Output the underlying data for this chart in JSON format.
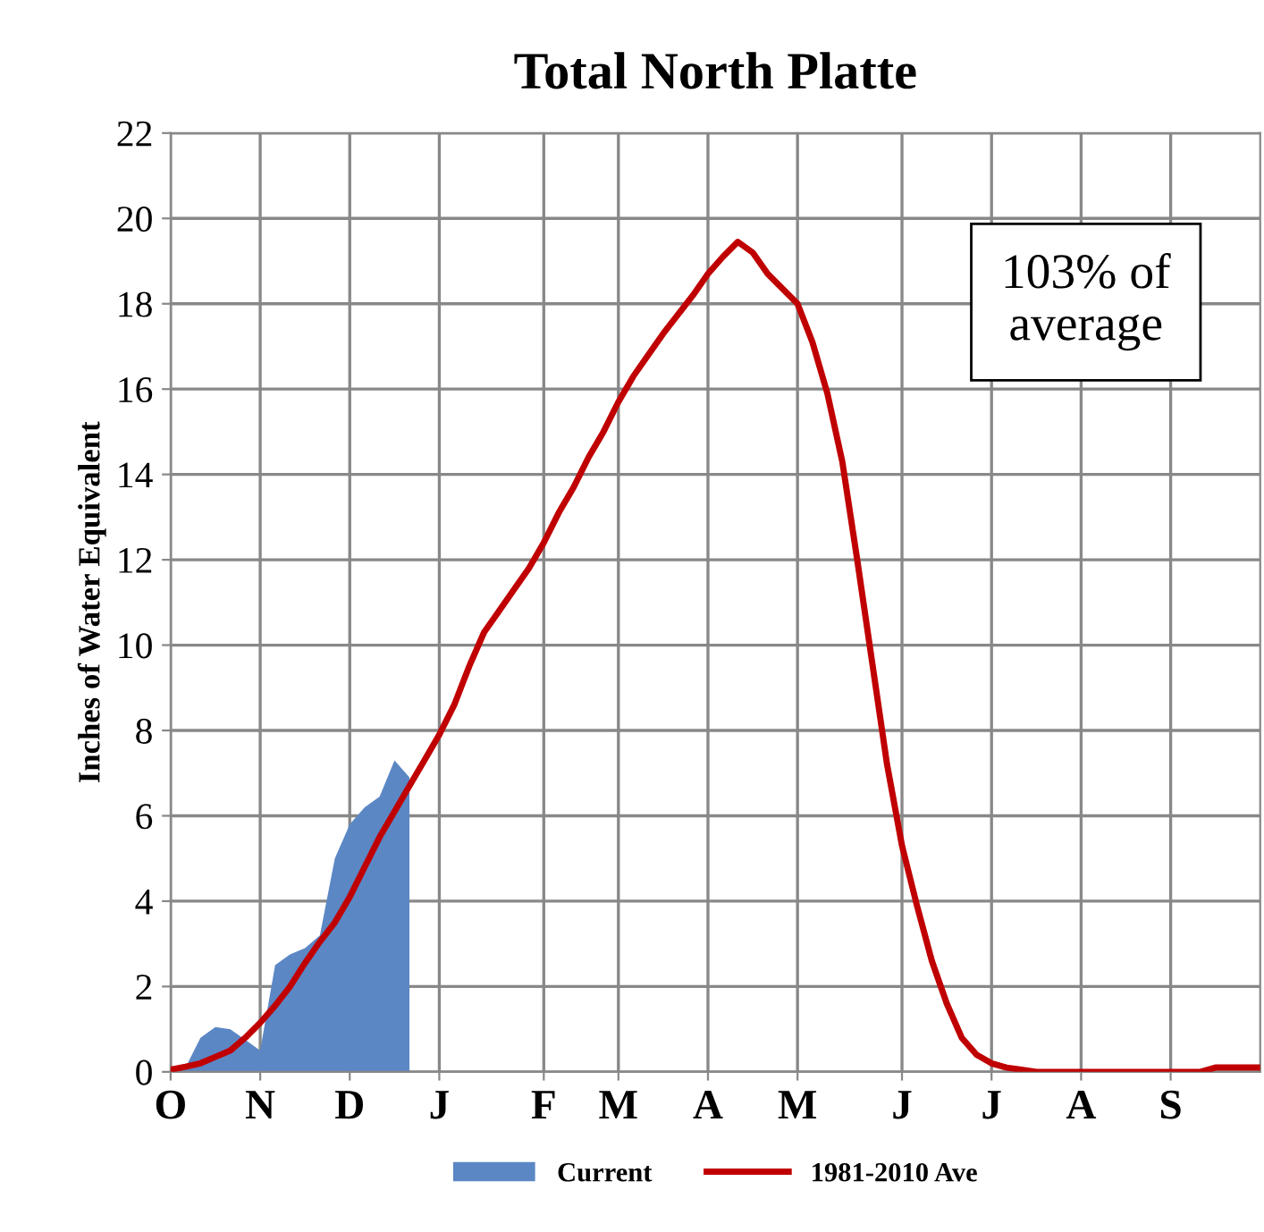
{
  "chart_data": {
    "type": "line",
    "title": "Total North Platte",
    "ylabel": "Inches of Water Equivalent",
    "categories": [
      "O",
      null,
      null,
      null,
      null,
      null,
      "N",
      null,
      null,
      null,
      null,
      null,
      "D",
      null,
      null,
      null,
      null,
      null,
      "J",
      null,
      null,
      null,
      null,
      null,
      null,
      "F",
      null,
      null,
      null,
      null,
      "M",
      null,
      null,
      null,
      null,
      null,
      "A",
      null,
      null,
      null,
      null,
      null,
      "M",
      null,
      null,
      null,
      null,
      null,
      null,
      "J",
      null,
      null,
      null,
      null,
      null,
      "J",
      null,
      null,
      null,
      null,
      null,
      "A",
      null,
      null,
      null,
      null,
      null,
      "S",
      null,
      null,
      null,
      null,
      null,
      null
    ],
    "ylim": [
      0,
      22
    ],
    "yticks": [
      0,
      2,
      4,
      6,
      8,
      10,
      12,
      14,
      16,
      18,
      20,
      22
    ],
    "grid": true,
    "legend": "bottom",
    "series": [
      {
        "name": "Current",
        "type": "area",
        "color": "#5b87c5",
        "values": [
          0,
          0.1,
          0.8,
          1.05,
          1.0,
          0.75,
          0.5,
          2.5,
          2.75,
          2.9,
          3.2,
          5.0,
          5.8,
          6.2,
          6.45,
          7.3,
          6.9,
          null,
          null,
          null,
          null,
          null,
          null,
          null,
          null,
          null,
          null,
          null,
          null,
          null,
          null,
          null,
          null,
          null,
          null,
          null,
          null,
          null,
          null,
          null,
          null,
          null,
          null,
          null,
          null,
          null,
          null,
          null,
          null,
          null,
          null,
          null,
          null,
          null,
          null,
          null,
          null,
          null,
          null,
          null,
          null,
          null,
          null,
          null,
          null,
          null,
          null,
          null,
          null,
          null,
          null,
          null,
          null,
          null
        ]
      },
      {
        "name": "1981-2010 Ave",
        "color": "#c00000",
        "values": [
          0.05,
          0.12,
          0.2,
          0.35,
          0.5,
          0.8,
          1.15,
          1.55,
          2.0,
          2.55,
          3.05,
          3.5,
          4.1,
          4.8,
          5.5,
          6.1,
          6.7,
          7.3,
          7.9,
          8.6,
          9.5,
          10.3,
          10.8,
          11.3,
          11.8,
          12.4,
          13.1,
          13.7,
          14.4,
          15.0,
          15.7,
          16.3,
          16.8,
          17.3,
          17.75,
          18.2,
          18.7,
          19.1,
          19.45,
          19.2,
          18.7,
          18.35,
          18.0,
          17.1,
          15.9,
          14.3,
          12.0,
          9.6,
          7.2,
          5.3,
          3.9,
          2.6,
          1.6,
          0.8,
          0.4,
          0.2,
          0.1,
          0.05,
          0,
          0,
          0,
          0,
          0,
          0,
          0,
          0,
          0,
          0,
          0,
          0,
          0.1,
          0.1,
          0.1,
          0.1
        ]
      }
    ],
    "annotations": [
      "103% of\naverage"
    ]
  }
}
